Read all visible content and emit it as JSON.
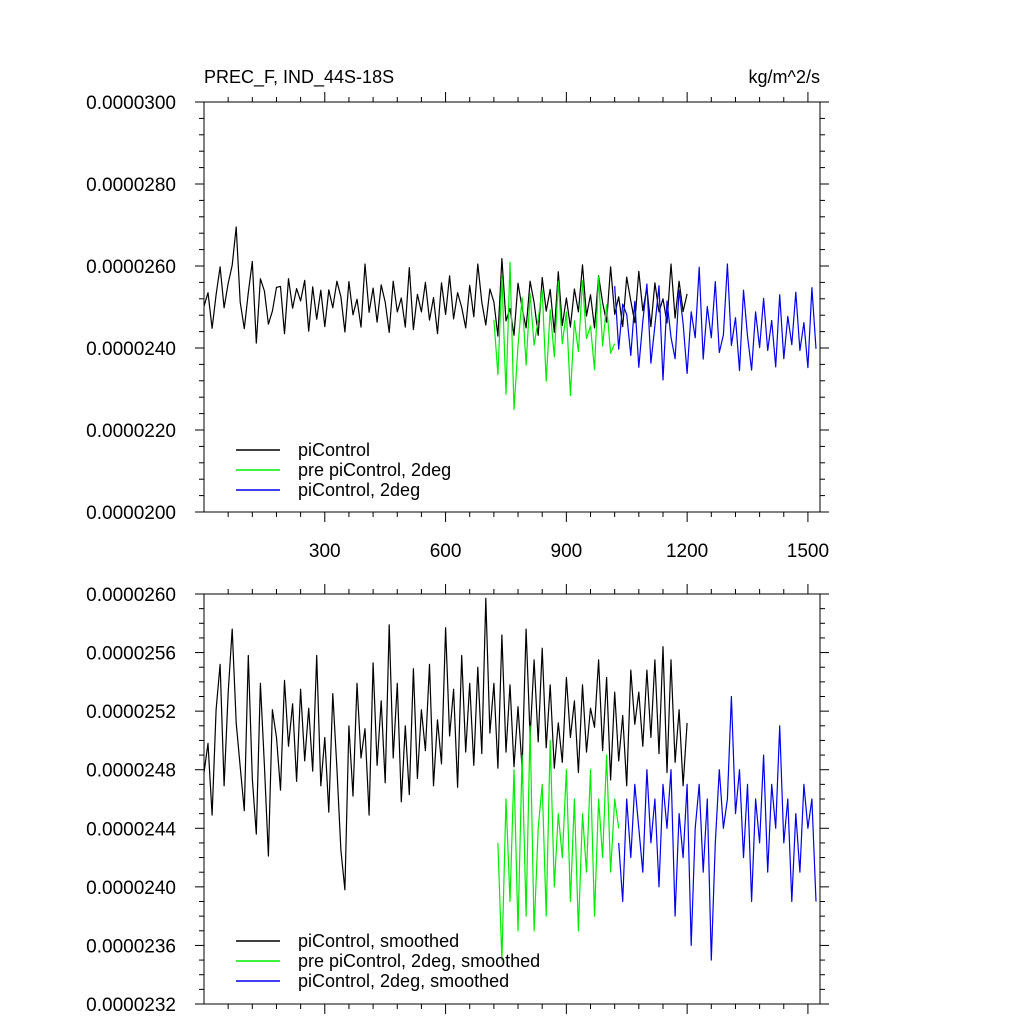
{
  "chart_data": [
    {
      "type": "line",
      "title_left": "PREC_F, IND_44S-18S",
      "title_right": "kg/m^2/s",
      "xlim": [
        0,
        1530
      ],
      "ylim": [
        2e-05,
        3e-05
      ],
      "xticks": [
        300,
        600,
        900,
        1200,
        1500
      ],
      "xtick_labels": [
        "300",
        "600",
        "900",
        "1200",
        "1500"
      ],
      "yticks": [
        2e-05,
        2.2e-05,
        2.4e-05,
        2.6e-05,
        2.8e-05,
        3e-05
      ],
      "ytick_labels": [
        "0.0000200",
        "0.0000220",
        "0.0000240",
        "0.0000260",
        "0.0000280",
        "0.0000300"
      ],
      "legend_position": "bottom-left",
      "series": [
        {
          "name": "piControl",
          "color": "#000000",
          "x_range": [
            0,
            1200
          ],
          "x_step": 10,
          "values": [
            2.502e-05,
            2.535e-05,
            2.448e-05,
            2.53e-05,
            2.598e-05,
            2.498e-05,
            2.558e-05,
            2.602e-05,
            2.695e-05,
            2.512e-05,
            2.447e-05,
            2.535e-05,
            2.611e-05,
            2.412e-05,
            2.569e-05,
            2.539e-05,
            2.458e-05,
            2.49e-05,
            2.548e-05,
            2.55e-05,
            2.435e-05,
            2.569e-05,
            2.497e-05,
            2.545e-05,
            2.515e-05,
            2.565e-05,
            2.441e-05,
            2.549e-05,
            2.47e-05,
            2.541e-05,
            2.452e-05,
            2.542e-05,
            2.498e-05,
            2.563e-05,
            2.525e-05,
            2.439e-05,
            2.562e-05,
            2.481e-05,
            2.519e-05,
            2.451e-05,
            2.605e-05,
            2.487e-05,
            2.546e-05,
            2.463e-05,
            2.554e-05,
            2.512e-05,
            2.438e-05,
            2.563e-05,
            2.488e-05,
            2.522e-05,
            2.451e-05,
            2.596e-05,
            2.445e-05,
            2.531e-05,
            2.488e-05,
            2.56e-05,
            2.468e-05,
            2.523e-05,
            2.435e-05,
            2.559e-05,
            2.482e-05,
            2.576e-05,
            2.471e-05,
            2.535e-05,
            2.499e-05,
            2.449e-05,
            2.553e-05,
            2.476e-05,
            2.605e-05,
            2.512e-05,
            2.456e-05,
            2.544e-05,
            2.512e-05,
            2.429e-05,
            2.618e-05,
            2.466e-05,
            2.496e-05,
            2.431e-05,
            2.558e-05,
            2.498e-05,
            2.449e-05,
            2.563e-05,
            2.511e-05,
            2.431e-05,
            2.572e-05,
            2.49e-05,
            2.543e-05,
            2.438e-05,
            2.586e-05,
            2.455e-05,
            2.522e-05,
            2.451e-05,
            2.544e-05,
            2.488e-05,
            2.603e-05,
            2.478e-05,
            2.53e-05,
            2.449e-05,
            2.576e-05,
            2.511e-05,
            2.463e-05,
            2.598e-05,
            2.482e-05,
            2.525e-05,
            2.452e-05,
            2.573e-05,
            2.515e-05,
            2.462e-05,
            2.587e-05,
            2.491e-05,
            2.546e-05,
            2.452e-05,
            2.559e-05,
            2.488e-05,
            2.52e-05,
            2.461e-05,
            2.605e-05,
            2.473e-05,
            2.563e-05,
            2.489e-05,
            2.532e-05
          ]
        },
        {
          "name": "pre piControl, 2deg",
          "color": "#00ee00",
          "x_range": [
            720,
            1020
          ],
          "x_step": 10,
          "values": [
            2.469e-05,
            2.335e-05,
            2.576e-05,
            2.287e-05,
            2.609e-05,
            2.25e-05,
            2.405e-05,
            2.523e-05,
            2.358e-05,
            2.533e-05,
            2.407e-05,
            2.47e-05,
            2.542e-05,
            2.319e-05,
            2.493e-05,
            2.378e-05,
            2.563e-05,
            2.41e-05,
            2.488e-05,
            2.284e-05,
            2.466e-05,
            2.391e-05,
            2.564e-05,
            2.423e-05,
            2.454e-05,
            2.347e-05,
            2.574e-05,
            2.405e-05,
            2.505e-05,
            2.387e-05,
            2.411e-05
          ]
        },
        {
          "name": "piControl, 2deg",
          "color": "#0000ee",
          "x_range": [
            1020,
            1520
          ],
          "x_step": 10,
          "values": [
            2.551e-05,
            2.397e-05,
            2.507e-05,
            2.482e-05,
            2.382e-05,
            2.514e-05,
            2.353e-05,
            2.465e-05,
            2.556e-05,
            2.363e-05,
            2.455e-05,
            2.552e-05,
            2.322e-05,
            2.515e-05,
            2.426e-05,
            2.374e-05,
            2.541e-05,
            2.46e-05,
            2.338e-05,
            2.488e-05,
            2.425e-05,
            2.597e-05,
            2.373e-05,
            2.501e-05,
            2.425e-05,
            2.562e-05,
            2.389e-05,
            2.432e-05,
            2.605e-05,
            2.406e-05,
            2.474e-05,
            2.345e-05,
            2.541e-05,
            2.429e-05,
            2.346e-05,
            2.488e-05,
            2.401e-05,
            2.521e-05,
            2.394e-05,
            2.467e-05,
            2.354e-05,
            2.53e-05,
            2.374e-05,
            2.477e-05,
            2.408e-05,
            2.536e-05,
            2.394e-05,
            2.462e-05,
            2.352e-05,
            2.547e-05,
            2.398e-05
          ]
        }
      ]
    },
    {
      "type": "line",
      "xlim": [
        0,
        1530
      ],
      "ylim": [
        2.32e-05,
        2.6e-05
      ],
      "xticks": [
        300,
        600,
        900,
        1200,
        1500
      ],
      "yticks": [
        2.32e-05,
        2.36e-05,
        2.4e-05,
        2.44e-05,
        2.48e-05,
        2.52e-05,
        2.56e-05,
        2.6e-05
      ],
      "ytick_labels": [
        "0.0000232",
        "0.0000236",
        "0.0000240",
        "0.0000244",
        "0.0000248",
        "0.0000252",
        "0.0000256",
        "0.0000260"
      ],
      "legend_position": "bottom-left",
      "series": [
        {
          "name": "piControl, smoothed",
          "color": "#000000",
          "x_range": [
            0,
            1200
          ],
          "x_step": 10,
          "values": [
            2.478e-05,
            2.498e-05,
            2.449e-05,
            2.521e-05,
            2.552e-05,
            2.469e-05,
            2.533e-05,
            2.576e-05,
            2.512e-05,
            2.482e-05,
            2.452e-05,
            2.558e-05,
            2.474e-05,
            2.436e-05,
            2.539e-05,
            2.483e-05,
            2.421e-05,
            2.521e-05,
            2.502e-05,
            2.466e-05,
            2.541e-05,
            2.496e-05,
            2.525e-05,
            2.472e-05,
            2.535e-05,
            2.486e-05,
            2.522e-05,
            2.479e-05,
            2.558e-05,
            2.469e-05,
            2.502e-05,
            2.451e-05,
            2.532e-05,
            2.481e-05,
            2.425e-05,
            2.398e-05,
            2.51e-05,
            2.462e-05,
            2.539e-05,
            2.488e-05,
            2.508e-05,
            2.449e-05,
            2.553e-05,
            2.483e-05,
            2.527e-05,
            2.471e-05,
            2.579e-05,
            2.488e-05,
            2.539e-05,
            2.458e-05,
            2.51e-05,
            2.463e-05,
            2.549e-05,
            2.474e-05,
            2.521e-05,
            2.493e-05,
            2.552e-05,
            2.469e-05,
            2.514e-05,
            2.484e-05,
            2.577e-05,
            2.503e-05,
            2.535e-05,
            2.468e-05,
            2.558e-05,
            2.492e-05,
            2.539e-05,
            2.483e-05,
            2.55e-05,
            2.491e-05,
            2.597e-05,
            2.505e-05,
            2.539e-05,
            2.481e-05,
            2.572e-05,
            2.492e-05,
            2.538e-05,
            2.482e-05,
            2.523e-05,
            2.481e-05,
            2.576e-05,
            2.502e-05,
            2.555e-05,
            2.499e-05,
            2.563e-05,
            2.495e-05,
            2.538e-05,
            2.481e-05,
            2.512e-05,
            2.485e-05,
            2.543e-05,
            2.502e-05,
            2.527e-05,
            2.478e-05,
            2.538e-05,
            2.492e-05,
            2.522e-05,
            2.509e-05,
            2.555e-05,
            2.493e-05,
            2.543e-05,
            2.473e-05,
            2.533e-05,
            2.486e-05,
            2.517e-05,
            2.469e-05,
            2.548e-05,
            2.511e-05,
            2.533e-05,
            2.496e-05,
            2.548e-05,
            2.502e-05,
            2.555e-05,
            2.491e-05,
            2.564e-05,
            2.478e-05,
            2.555e-05,
            2.485e-05,
            2.521e-05,
            2.469e-05,
            2.512e-05
          ]
        },
        {
          "name": "pre piControl, 2deg, smoothed",
          "color": "#00ee00",
          "x_range": [
            730,
            1030
          ],
          "x_step": 10,
          "values": [
            2.43e-05,
            2.35e-05,
            2.46e-05,
            2.39e-05,
            2.48e-05,
            2.37e-05,
            2.49e-05,
            2.38e-05,
            2.51e-05,
            2.37e-05,
            2.44e-05,
            2.47e-05,
            2.38e-05,
            2.5e-05,
            2.4e-05,
            2.45e-05,
            2.42e-05,
            2.48e-05,
            2.39e-05,
            2.46e-05,
            2.37e-05,
            2.45e-05,
            2.41e-05,
            2.48e-05,
            2.38e-05,
            2.46e-05,
            2.42e-05,
            2.49e-05,
            2.41e-05,
            2.46e-05,
            2.44e-05
          ]
        },
        {
          "name": "piControl, 2deg, smoothed",
          "color": "#0000ee",
          "x_range": [
            1030,
            1520
          ],
          "x_step": 10,
          "values": [
            2.43e-05,
            2.39e-05,
            2.46e-05,
            2.42e-05,
            2.47e-05,
            2.44e-05,
            2.41e-05,
            2.48e-05,
            2.43e-05,
            2.46e-05,
            2.4e-05,
            2.47e-05,
            2.44e-05,
            2.48e-05,
            2.38e-05,
            2.45e-05,
            2.42e-05,
            2.47e-05,
            2.36e-05,
            2.44e-05,
            2.47e-05,
            2.41e-05,
            2.46e-05,
            2.35e-05,
            2.43e-05,
            2.48e-05,
            2.44e-05,
            2.46e-05,
            2.53e-05,
            2.45e-05,
            2.48e-05,
            2.42e-05,
            2.47e-05,
            2.39e-05,
            2.46e-05,
            2.43e-05,
            2.49e-05,
            2.41e-05,
            2.47e-05,
            2.44e-05,
            2.51e-05,
            2.43e-05,
            2.46e-05,
            2.39e-05,
            2.45e-05,
            2.41e-05,
            2.47e-05,
            2.44e-05,
            2.46e-05,
            2.39e-05
          ]
        }
      ]
    }
  ]
}
